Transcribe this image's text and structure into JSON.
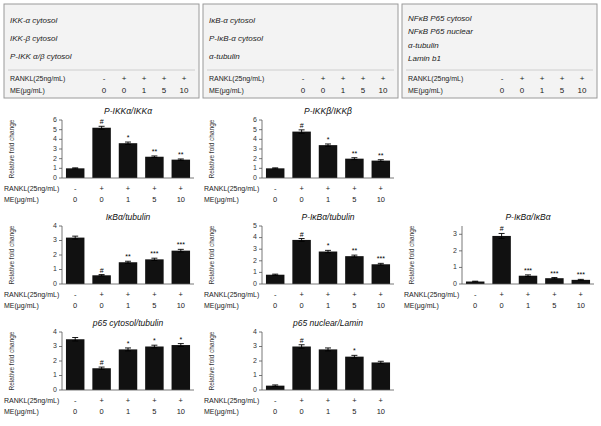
{
  "chart_data": [
    {
      "type": "blot",
      "categories": [
        "IKK-α cytosol",
        "IKK-β cytosol",
        "P-IKK α/β cytosol"
      ],
      "annotations": {
        "lanes": [
          {
            "label": "RANKL(25ng/mL)",
            "values": [
              "-",
              "+",
              "+",
              "+",
              "+"
            ]
          },
          {
            "label": "ME(μg/mL)",
            "values": [
              "0",
              "0",
              "1",
              "5",
              "10"
            ]
          }
        ]
      }
    },
    {
      "type": "blot",
      "categories": [
        "IκB-α cytosol",
        "P-IκB-α cytosol",
        "α-tubulin"
      ],
      "annotations": {
        "lanes": [
          {
            "label": "RANKL(25ng/mL)",
            "values": [
              "-",
              "+",
              "+",
              "+",
              "+"
            ]
          },
          {
            "label": "ME(μg/mL)",
            "values": [
              "0",
              "0",
              "1",
              "5",
              "10"
            ]
          }
        ]
      }
    },
    {
      "type": "blot",
      "categories": [
        "NFκB P65 cytosol",
        "NFκB P65 nuclear",
        "α-tubulin",
        "Lamin b1"
      ],
      "annotations": {
        "lanes": [
          {
            "label": "RANKL(25ng/mL)",
            "values": [
              "-",
              "+",
              "+",
              "+",
              "+"
            ]
          },
          {
            "label": "ME(μg/mL)",
            "values": [
              "0",
              "0",
              "1",
              "5",
              "10"
            ]
          }
        ]
      }
    },
    {
      "type": "bar",
      "title": "P-IKKα/IKKα",
      "ylabel": "Relative fold change",
      "categories": [
        null,
        null,
        null,
        null,
        null
      ],
      "values": [
        1.0,
        5.2,
        3.6,
        2.2,
        1.9
      ],
      "errors": [
        0.05,
        0.15,
        0.12,
        0.08,
        0.07
      ],
      "color": "#111111",
      "ylim": [
        0,
        6
      ],
      "yticks": [
        0,
        1,
        2,
        3,
        4,
        5,
        6
      ],
      "grid": false,
      "annotations": {
        "significance": [
          null,
          "#",
          "*",
          "**",
          "**"
        ],
        "lanes": [
          {
            "label": "RANKL(25ng/mL)",
            "values": [
              "-",
              "+",
              "+",
              "+",
              "+"
            ]
          },
          {
            "label": "ME(μg/mL)",
            "values": [
              "0",
              "0",
              "1",
              "5",
              "10"
            ]
          }
        ]
      }
    },
    {
      "type": "bar",
      "title": "P-IKKβ/IKKβ",
      "ylabel": "Relative fold change",
      "categories": [
        null,
        null,
        null,
        null,
        null
      ],
      "values": [
        1.0,
        4.8,
        3.4,
        2.0,
        1.8
      ],
      "errors": [
        0.05,
        0.18,
        0.12,
        0.1,
        0.09
      ],
      "color": "#111111",
      "ylim": [
        0,
        6
      ],
      "yticks": [
        0,
        1,
        2,
        3,
        4,
        5,
        6
      ],
      "grid": false,
      "annotations": {
        "significance": [
          null,
          "#",
          "*",
          "**",
          "**"
        ],
        "lanes": [
          {
            "label": "RANKL(25ng/mL)",
            "values": [
              "-",
              "+",
              "+",
              "+",
              "+"
            ]
          },
          {
            "label": "ME(μg/mL)",
            "values": [
              "0",
              "0",
              "1",
              "5",
              "10"
            ]
          }
        ]
      }
    },
    {
      "type": "bar",
      "title": "IκBα/tubulin",
      "ylabel": "Relative fold change",
      "categories": [
        null,
        null,
        null,
        null,
        null
      ],
      "values": [
        3.2,
        0.6,
        1.5,
        1.7,
        2.3
      ],
      "errors": [
        0.1,
        0.05,
        0.07,
        0.08,
        0.09
      ],
      "color": "#111111",
      "ylim": [
        0,
        4
      ],
      "yticks": [
        0,
        1,
        2,
        3,
        4
      ],
      "grid": false,
      "annotations": {
        "significance": [
          null,
          "#",
          "**",
          "***",
          "***"
        ],
        "lanes": [
          {
            "label": "RANKL(25ng/mL)",
            "values": [
              "-",
              "+",
              "+",
              "+",
              "+"
            ]
          },
          {
            "label": "ME(μg/mL)",
            "values": [
              "0",
              "0",
              "1",
              "5",
              "10"
            ]
          }
        ]
      }
    },
    {
      "type": "bar",
      "title": "P-IκBα/tubulin",
      "ylabel": "Relative fold change",
      "categories": [
        null,
        null,
        null,
        null,
        null
      ],
      "values": [
        0.8,
        3.8,
        2.8,
        2.4,
        1.7
      ],
      "errors": [
        0.05,
        0.12,
        0.1,
        0.09,
        0.08
      ],
      "color": "#111111",
      "ylim": [
        0,
        5
      ],
      "yticks": [
        0,
        1,
        2,
        3,
        4,
        5
      ],
      "grid": false,
      "annotations": {
        "significance": [
          null,
          "#",
          "*",
          "**",
          "***"
        ],
        "lanes": [
          {
            "label": "RANKL(25ng/mL)",
            "values": [
              "-",
              "+",
              "+",
              "+",
              "+"
            ]
          },
          {
            "label": "ME(μg/mL)",
            "values": [
              "0",
              "0",
              "1",
              "5",
              "10"
            ]
          }
        ]
      }
    },
    {
      "type": "bar",
      "title": "P-IκBα/IκBα",
      "ylabel": "Relative fold change",
      "categories": [
        null,
        null,
        null,
        null,
        null
      ],
      "values": [
        0.15,
        2.9,
        0.5,
        0.35,
        0.25
      ],
      "errors": [
        0.02,
        0.15,
        0.05,
        0.04,
        0.03
      ],
      "color": "#111111",
      "ylim": [
        0,
        3.5
      ],
      "yticks": [
        0,
        1,
        2,
        3
      ],
      "grid": false,
      "annotations": {
        "significance": [
          null,
          "#",
          "***",
          "***",
          "***"
        ],
        "lanes": [
          {
            "label": "RANKL(25ng/mL)",
            "values": [
              "-",
              "+",
              "+",
              "+",
              "+"
            ]
          },
          {
            "label": "ME(μg/mL)",
            "values": [
              "0",
              "0",
              "1",
              "5",
              "10"
            ]
          }
        ]
      }
    },
    {
      "type": "bar",
      "title": "p65 cytosol/tubulin",
      "ylabel": "Relative fold change",
      "categories": [
        null,
        null,
        null,
        null,
        null
      ],
      "values": [
        3.5,
        1.5,
        2.8,
        3.0,
        3.1
      ],
      "errors": [
        0.12,
        0.08,
        0.1,
        0.09,
        0.1
      ],
      "color": "#111111",
      "ylim": [
        0,
        4
      ],
      "yticks": [
        0,
        1,
        2,
        3,
        4
      ],
      "grid": false,
      "annotations": {
        "significance": [
          null,
          "#",
          "*",
          "*",
          "*"
        ],
        "lanes": [
          {
            "label": "RANKL(25ng/mL)",
            "values": [
              "-",
              "+",
              "+",
              "+",
              "+"
            ]
          },
          {
            "label": "ME(μg/mL)",
            "values": [
              "0",
              "0",
              "1",
              "5",
              "10"
            ]
          }
        ]
      }
    },
    {
      "type": "bar",
      "title": "p65 nuclear/Lamin",
      "ylabel": "Relative fold change",
      "categories": [
        null,
        null,
        null,
        null,
        null
      ],
      "values": [
        0.3,
        3.0,
        2.8,
        2.3,
        1.9
      ],
      "errors": [
        0.05,
        0.12,
        0.1,
        0.09,
        0.08
      ],
      "color": "#111111",
      "ylim": [
        0,
        4
      ],
      "yticks": [
        0,
        1,
        2,
        3,
        4
      ],
      "grid": false,
      "annotations": {
        "significance": [
          null,
          "#",
          null,
          "*",
          null
        ],
        "lanes": [
          {
            "label": "RANKL(25ng/mL)",
            "values": [
              "-",
              "+",
              "+",
              "+",
              "+"
            ]
          },
          {
            "label": "ME(μg/mL)",
            "values": [
              "0",
              "0",
              "1",
              "5",
              "10"
            ]
          }
        ]
      }
    }
  ]
}
